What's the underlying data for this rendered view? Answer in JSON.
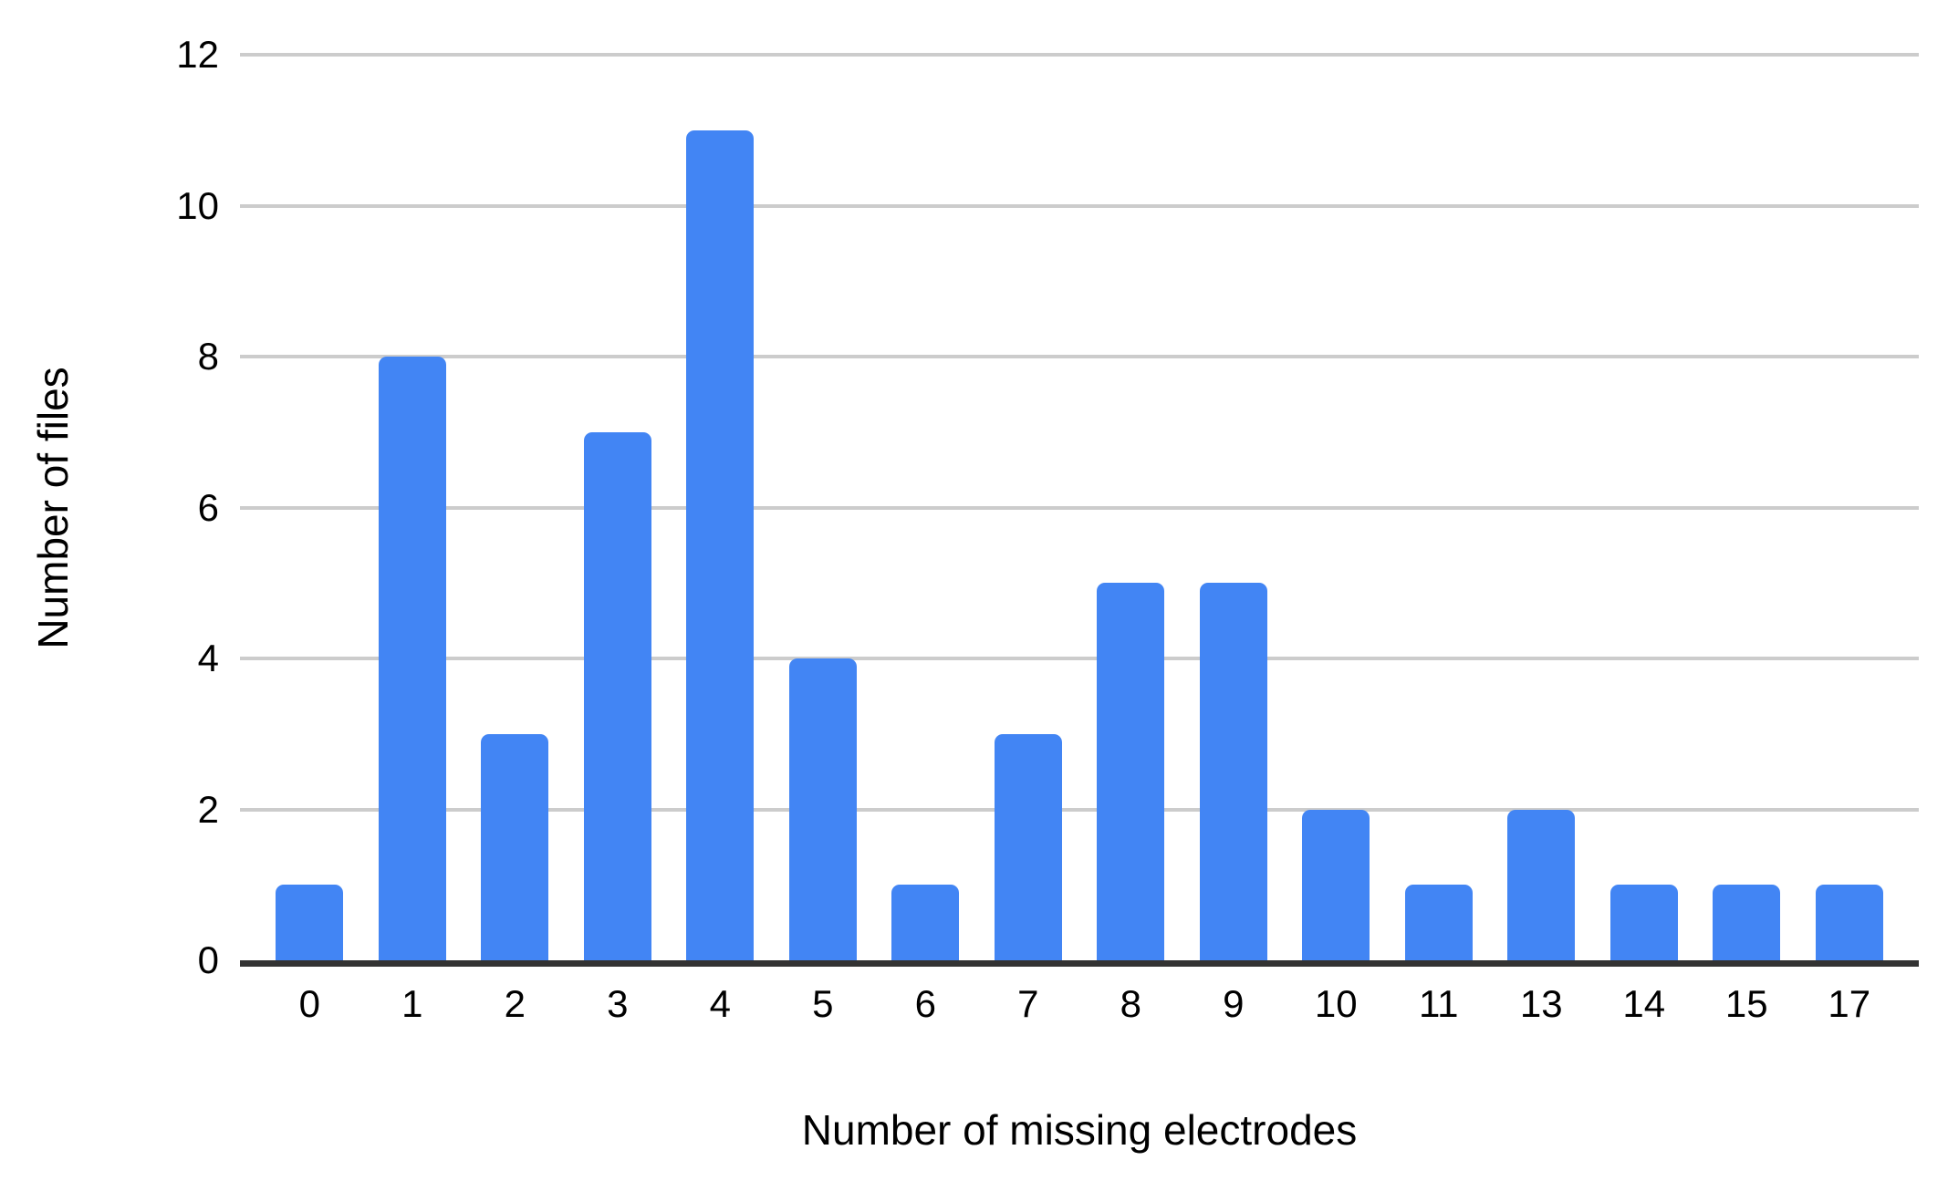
{
  "chart_data": {
    "type": "bar",
    "categories": [
      "0",
      "1",
      "2",
      "3",
      "4",
      "5",
      "6",
      "7",
      "8",
      "9",
      "10",
      "11",
      "13",
      "14",
      "15",
      "17"
    ],
    "values": [
      1,
      8,
      3,
      7,
      11,
      4,
      1,
      3,
      5,
      5,
      2,
      1,
      2,
      1,
      1,
      1
    ],
    "title": "",
    "xlabel": "Number of missing electrodes",
    "ylabel": "Number of files",
    "ylim": [
      0,
      12
    ],
    "yticks": [
      0,
      2,
      4,
      6,
      8,
      10,
      12
    ],
    "grid": true,
    "legend": false,
    "bar_color": "#4285F4",
    "gridline_color": "#cccccc",
    "axis_line_color": "#333333",
    "text_color": "#000000",
    "background_color": "#ffffff"
  }
}
